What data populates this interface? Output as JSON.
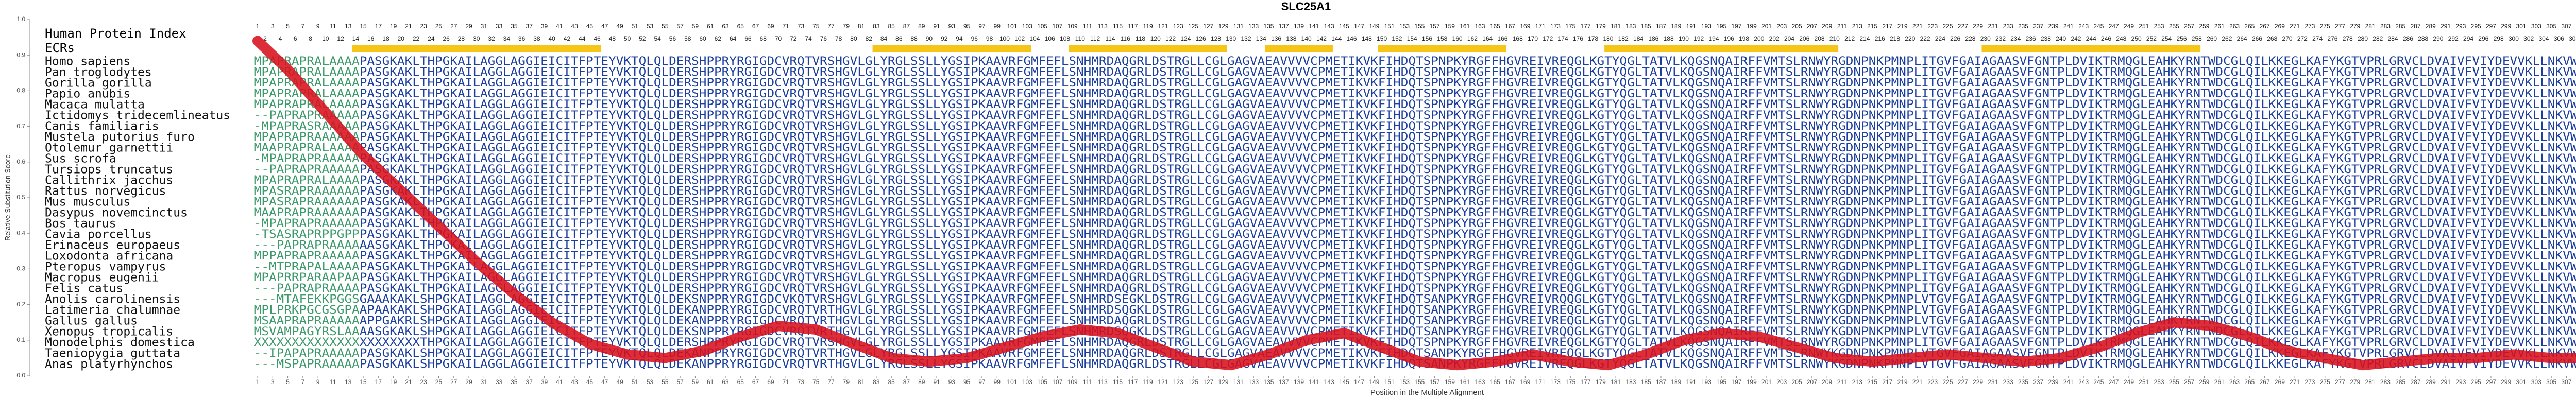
{
  "chart_data": {
    "type": "line",
    "title": "SLC25A1",
    "ylabel": "Relative Substitution Score",
    "xlabel": "Position in the Multiple Alignment",
    "index_label": "Human Protein Index",
    "ecr_label": "ECRs",
    "color": "#d8101c",
    "ecr_color": "#f5c518",
    "xlim": [
      1,
      311
    ],
    "ylim": [
      0,
      1
    ],
    "yticks": [
      {
        "value": 0,
        "label": "0.0"
      },
      {
        "value": 0.1,
        "label": "0.1"
      },
      {
        "value": 0.2,
        "label": "0.2"
      },
      {
        "value": 0.3,
        "label": "0.3"
      },
      {
        "value": 0.4,
        "label": "0.4"
      },
      {
        "value": 0.5,
        "label": "0.5"
      },
      {
        "value": 0.6,
        "label": "0.6"
      },
      {
        "value": 0.7,
        "label": "0.7"
      },
      {
        "value": 0.8,
        "label": "0.8"
      },
      {
        "value": 0.9,
        "label": "0.9"
      },
      {
        "value": 1,
        "label": "1.0"
      }
    ],
    "xticks": [
      1,
      3,
      5,
      7,
      9,
      11,
      13,
      15,
      17,
      19,
      21,
      23,
      25,
      27,
      29,
      31,
      33,
      35,
      37,
      39,
      41,
      43,
      45,
      47,
      49,
      51,
      53,
      55,
      57,
      59,
      61,
      63,
      65,
      67,
      69,
      71,
      73,
      75,
      77,
      79,
      81,
      83,
      85,
      87,
      89,
      91,
      93,
      95,
      97,
      99,
      101,
      103,
      105,
      107,
      109,
      111,
      113,
      115,
      117,
      119,
      121,
      123,
      125,
      127,
      129,
      131,
      133,
      135,
      137,
      139,
      141,
      143,
      145,
      147,
      149,
      151,
      153,
      155,
      157,
      159,
      161,
      163,
      165,
      167,
      169,
      171,
      173,
      175,
      177,
      179,
      181,
      183,
      185,
      187,
      189,
      191,
      193,
      195,
      197,
      199,
      201,
      203,
      205,
      207,
      209,
      211,
      213,
      215,
      217,
      219,
      221,
      223,
      225,
      227,
      229,
      231,
      233,
      235,
      237,
      239,
      241,
      243,
      245,
      247,
      249,
      251,
      253,
      255,
      257,
      259,
      261,
      263,
      265,
      267,
      269,
      271,
      273,
      275,
      277,
      279,
      281,
      283,
      285,
      287,
      289,
      291,
      293,
      295,
      297,
      299,
      301,
      303,
      305,
      307,
      309,
      311
    ],
    "index_labels": [
      1,
      2,
      3,
      4,
      5,
      6,
      7,
      8,
      9,
      10,
      11,
      12,
      13,
      14,
      15,
      16,
      17,
      18,
      19,
      20,
      21,
      22,
      23,
      24,
      25,
      26,
      27,
      28,
      29,
      30,
      31,
      32,
      33,
      34,
      35,
      36,
      37,
      38,
      39,
      40,
      41,
      42,
      43,
      44,
      45,
      46,
      47,
      48,
      49,
      50,
      51,
      52,
      53,
      54,
      55,
      56,
      57,
      58,
      59,
      60,
      61,
      62,
      63,
      64,
      65,
      66,
      67,
      68,
      69,
      70,
      71,
      72,
      73,
      74,
      75,
      76,
      77,
      78,
      79,
      80,
      81,
      82,
      83,
      84,
      85,
      86,
      87,
      88,
      89,
      90,
      91,
      92,
      93,
      94,
      95,
      96,
      97,
      98,
      99,
      100,
      101,
      102,
      103,
      104,
      105,
      106,
      107,
      108,
      109,
      110,
      111,
      112,
      113,
      114,
      115,
      116,
      117,
      118,
      119,
      120,
      121,
      122,
      123,
      124,
      125,
      126,
      127,
      128,
      129,
      130,
      131,
      132,
      133,
      134,
      135,
      136,
      137,
      138,
      139,
      140,
      141,
      142,
      143,
      144,
      145,
      146,
      147,
      148,
      149,
      150,
      151,
      152,
      153,
      154,
      155,
      156,
      157,
      158,
      159,
      160,
      161,
      162,
      163,
      164,
      165,
      166,
      167,
      168,
      169,
      170,
      171,
      172,
      173,
      174,
      175,
      176,
      177,
      178,
      179,
      180,
      181,
      182,
      183,
      184,
      185,
      186,
      187,
      188,
      189,
      190,
      191,
      192,
      193,
      194,
      195,
      196,
      197,
      198,
      199,
      200,
      201,
      202,
      203,
      204,
      205,
      206,
      207,
      208,
      209,
      210,
      211,
      212,
      213,
      214,
      215,
      216,
      217,
      218,
      219,
      220,
      221,
      222,
      223,
      224,
      225,
      226,
      227,
      228,
      229,
      230,
      231,
      232,
      233,
      234,
      235,
      236,
      237,
      238,
      239,
      240,
      241,
      242,
      243,
      244,
      245,
      246,
      247,
      248,
      249,
      250,
      251,
      252,
      253,
      254,
      255,
      256,
      257,
      258,
      259,
      260,
      261,
      262,
      263,
      264,
      265,
      266,
      267,
      268,
      269,
      270,
      271,
      272,
      273,
      274,
      275,
      276,
      277,
      278,
      279,
      280,
      281,
      282,
      283,
      284,
      285,
      286,
      287,
      288,
      289,
      290,
      291,
      292,
      293,
      294,
      295,
      296,
      297,
      298,
      299,
      300,
      301,
      302,
      303,
      304,
      305,
      306,
      307,
      308,
      309,
      310,
      311
    ],
    "ecrs": [
      [
        14,
        46
      ],
      [
        83,
        103
      ],
      [
        109,
        129
      ],
      [
        135,
        143
      ],
      [
        150,
        166
      ],
      [
        180,
        210
      ],
      [
        230,
        258
      ]
    ],
    "species": [
      "Homo sapiens",
      "Pan troglodytes",
      "Gorilla gorilla",
      "Papio anubis",
      "Macaca mulatta",
      "Ictidomys tridecemlineatus",
      "Canis familiaris",
      "Mustela putorius furo",
      "Otolemur garnettii",
      "Sus scrofa",
      "Tursiops truncatus",
      "Callithrix jacchus",
      "Rattus norvegicus",
      "Mus musculus",
      "Dasypus novemcinctus",
      "Bos taurus",
      "Cavia porcellus",
      "Erinaceus europaeus",
      "Loxodonta africana",
      "Pteropus vampyrus",
      "Macropus eugenii",
      "Felis catus",
      "Anolis carolinensis",
      "Latimeria chalumnae",
      "Gallus gallus",
      "Xenopus tropicalis",
      "Monodelphis domestica",
      "Taeniopygia guttata",
      "Anas platyrhynchos"
    ],
    "sequences": [
      "MPAPRAPRALAAAAPASGKAKLTHPGKAILAGGLAGGIEICITFPTEYVKTQLQLDERSHPPRYRGIGDCVRQTVRSHGVLGLYRGLSSLLYGSIPKAAVRFGMFEFLSNHMRDAQGRLDSTRGLLCGLGAGVAEAVVVVCPMETIKVKFIHDQTSPNPKYRGFFHGVREIVREQGLKGTYQGLTATVLKQGSNQAIRFFVMTSLRNWYRGDNPNKPMNPLITGVFGAIAGAASVFGNTPLDVIKTRMQGLEAHKYRNTWDCGLQILKKEGLKAFYKGTVPRLGRVCLDVAIVFVIYDEVVKLLNKVWKTD",
      "MPAPRAPRALAAAAPASGKAKLTHPGKAILAGGLAGGIEICITFPTEYVKTQLQLDERSHPPRYRGIGDCVRQTVRSHGVLGLYRGLSSLLYGSIPKAAVRFGMFEFLSNHMRDAQGRLDSTRGLLCGLGAGVAEAVVVVCPMETIKVKFIHDQTSPNPKYRGFFHGVREIVREQGLKGTYQGLTATVLKQGSNQAIRFFVMTSLRNWYRGDNPNKPMNPLITGVFGAIAGAASVFGNTPLDVIKTRMQGLEAHKYRNTWDCGLQILKKEGLKAFYKGTVPRLGRVCLDVAIVFVIYDEVVKLLNKVWKTD",
      "MPAPRAPRALAAAAPASGKAKLTHPGKAILAGGLAGGIEICITFPTEYVKTQLQLDERSHPPRYRGIGDCVRQTVRSHGVLGLYRGLSSLLYGSIPKAAVRFGMFEFLSNHMRDAQGRLDSTRGLLCGLGAGVAEAVVVVCPMETIKVKFIHDQTSPNPKYRGFFHGVREIVREQGLKGTYQGLTATVLKQGSNQAIRFFVMTSLRNWYRGDNPNKPMNPLITGVFGAIAGAASVFGNTPLDVIKTRMQGLEAHKYRNTWDCGLQILKKEGLKAFYKGTVPRLGRVCLDVAIVFVIYDEVVKLLNKVWKTD",
      "MPAPRAPRALAAAAPASGKAKLTHPGKAILAGGLAGGIEICITFPTEYVKTQLQLDERSHPPRYRGIGDCVRQTVRSHGVLGLYRGLSSLLYGSIPKAAVRFGMFEFLSNHMRDAQGRLDSTRGLLCGLGAGVAEAVVVVCPMETIKVKFIHDQTSPNPKYRGFFHGVREIVREQGLKGTYQGLTATVLKQGSNQAIRFFVMTSLRNWYRGDNPNKPMNPLITGVFGAIAGAASVFGNTPLDVIKTRMQGLEAHKYRNTWDCGLQILKKEGLKAFYKGTVPRLGRVCLDVAIVFVIYDEVVKLLNKVWKTD",
      "MPAPRAPRALAAAAPASGKAKLTHPGKAILAGGLAGGIEICITFPTEYVKTQLQLDERSHPPRYRGIGDCVRQTVRSHGVLGLYRGLSSLLYGSIPKAAVRFGMFEFLSNHMRDAQGRLDSTRGLLCGLGAGVAEAVVVVCPMETIKVKFIHDQTSPNPKYRGFFHGVREIVREQGLKGTYQGLTATVLKQGSNQAIRFFVMTSLRNWYRGDNPNKPMNPLITGVFGAIAGAASVFGNTPLDVIKTRMQGLEAHKYRNTWDCGLQILKKEGLKAFYKGTVPRLGRVCLDVAIVFVIYDEVVKLLNKVWKTD",
      "--PAPRAPRAAAAAPASGKAKLTHPGKAILAGGLAGGIEICITFPTEYVKTQLQLDERSHPPRYRGIGDCVRQTVRSHGVLGLYRGLSSLLYGSIPKAAVRFGMFEFLSNHMRDAQGRLDSTRGLLCGLGAGVAEAVVVVCPMETIKVKFIHDQTSPNPKYRGFFHGVREIVREQGLKGTYQGLTATVLKQGSNQAIRFFVMTSLRNWYRGDNPNKPMNPLITGVFGAIAGAASVFGNTPLDVIKTRMQGLEAHKYRNTWDCGLQILKKEGLKAFYKGTVPRLGRVCLDVAIVFVIYDEVVKLLNKVWKTD",
      "-MPAPRASRAAAAAPASGKAKLTHPGKAILAGGLAGGIEICITFPTEYVKTQLQLDERSHPPRYRGIGDCVRQTVRSHGVLGLYRGLSSLLYGSIPKAAVRFGMFEFLSNHMRDAQGRLDSTRGLLCGLGAGVAEAVVVVCPMETIKVKFIHDQTSPNPKYRGFFHGVREIVREQGLKGTYQGLTATVLKQGSNQAIRFFVMTSLRNWYRGDNPNKPMNPLITGVFGAIAGAASVFGNTPLDVIKTRMQGLEAHKYRNTWDCGLQILKKEGLKAFYKGTVPRLGRVCLDVAIVFVIYDEVVKLLNKVWKTD",
      "MPAPRAPRAAAAAAPASGKAKLTHPGKAILAGGLAGGIEICITFPTEYVKTQLQLDERSHPPRYRGIGDCVRQTVRSHGVLGLYRGLSSLLYGSIPKAAVRFGMFEFLSNHMRDAQGRLDSTRGLLCGLGAGVAEAVVVVCPMETIKVKFIHDQTSPNPKYRGFFHGVREIVREQGLKGTYQGLTATVLKQGSNQAIRFFVMTSLRNWYRGDNPNKPMNPLITGVFGAIAGAASVFGNTPLDVIKTRMQGLEAHKYRNTWDCGLQILKKEGLKAFYKGTVPRLGRVCLDVAIVFVIYDEVVKLLNKVWKTD",
      "MAAPRAPRALAAAAPASGKAKLTHPGKAILAGGLAGGIEICITFPTEYVKTQLQLDERSHPPRYRGIGDCVRQTVRSHGVLGLYRGLSSLLYGSIPKAAVRFGMFEFLSNHMRDAQGRLDSTRGLLCGLGAGVAEAVVVVCPMETIKVKFIHDQTSPNPKYRGFFHGVREIVREQGLKGTYQGLTATVLKQGSNQAIRFFVMTSLRNWYRGDNPNKPMNPLITGVFGAIAGAASVFGNTPLDVIKTRMQGLEAHKYRNTWDCGLQILKKEGLKAFYKGTVPRLGRVCLDVAIVFVIYDEVVKLLNKVWKTD",
      "-MPAPRAPRAAAAAPASGKAKLTHPGKAILAGGLAGGIEICITFPTEYVKTQLQLDERSHPPRYRGIGDCVRQTVRSHGVLGLYRGLSSLLYGSIPKAAVRFGMFEFLSNHMRDAQGRLDSTRGLLCGLGAGVAEAVVVVCPMETIKVKFIHDQTSPNPKYRGFFHGVREIVREQGLKGTYQGLTATVLKQGSNQAIRFFVMTSLRNWYRGDNPNKPMNPLITGVFGAIAGAASVFGNTPLDVIKTRMQGLEAHKYRNTWDCGLQILKKEGLKAFYKGTVPRLGRVCLDVAIVFVIYDEVVKLLNKVWKTD",
      "--PAPRAPRAAAAAPASGKAKLTHPGKAILAGGLAGGIEICITFPTEYVKTQLQLDERSHPPRYRGIGDCVRQTVRSHGVLGLYRGLSSLLYGSIPKAAVRFGMFEFLSNHMRDAQGRLDSTRGLLCGLGAGVAEAVVVVCPMETIKVKFIHDQTSPNPKYRGFFHGVREIVREQGLKGTYQGLTATVLKQGSNQAIRFFVMTSLRNWYRGDNPNKPMNPLITGVFGAIAGAASVFGNTPLDVIKTRMQGLEAHKYRNTWDCGLQILKKEGLKAFYKGTVPRLGRVCLDVAIVFVIYDEVVKLLNKVWKTD",
      "MPAPRAPRALAAAAPASGKAKLTHPGKAILAGGLAGGIEICITFPTEYVKTQLQLDERSHPPRYRGIGDCVRQTVRSHGVLGLYRGLSSLLYGSIPKAAVRFGMFEFLSNHMRDAQGRLDSTRGLLCGLGAGVAEAVVVVCPMETIKVKFIHDQTSPNPKYRGFFHGVREIVREQGLKGTYQGLTATVLKQGSNQAIRFFVMTSLRNWYRGDNPNKPMNPLITGVFGAIAGAASVFGNTPLDVIKTRMQGLEAHKYRNTWDCGLQILKKEGLKAFYKGTVPRLGRVCLDVAIVFVIYDEVVKLLNKVWKTD",
      "MPASRAPRAAAAAAPASGKAKLTHPGKAILAGGLAGGIEICITFPTEYVKTQLQLDERSHPPRYRGIGDCVRQTVRSHGVLGLYRGLSSLLYGSIPKAAVRFGMFEFLSNHMRDAQGRLDSTRGLLCGLGAGVAEAVVVVCPMETIKVKFIHDQTSPNPKYRGFFHGVREIVREQGLKGTYQGLTATVLKQGSNQAIRFFVMTSLRNWYRGDNPNKPMNPLITGVFGAIAGAASVFGNTPLDVIKTRMQGLEAHKYRNTWDCGLQILKKEGLKAFYKGTVPRLGRVCLDVAIVFVIYDEVVKLLNKVWKTD",
      "MPASRAPRAAAAAAPASGKAKLTHPGKAILAGGLAGGIEICITFPTEYVKTQLQLDERSHPPRYRGIGDCVRQTVRSHGVLGLYRGLSSLLYGSIPKAAVRFGMFEFLSNHMRDAQGRLDSTRGLLCGLGAGVAEAVVVVCPMETIKVKFIHDQTSPNPKYRGFFHGVREIVREQGLKGTYQGLTATVLKQGSNQAIRFFVMTSLRNWYRGDNPNKPMNPLITGVFGAIAGAASVFGNTPLDVIKTRMQGLEAHKYRNTWDCGLQILKKEGLKAFYKGTVPRLGRVCLDVAIVFVIYDEVVKLLNKVWKTD",
      "MAAPRAPRAAAAAAPASGKAKLTHPGKAILAGGLAGGIEICITFPTEYVKTQLQLDERSHPPRYRGIGDCVRQTVRSHGVLGLYRGLSSLLYGSIPKAAVRFGMFEFLSNHMRDAQGRLDSTRGLLCGLGAGVAEAVVVVCPMETIKVKFIHDQTSPNPKYRGFFHGVREIVREQGLKGTYQGLTATVLKQGSNQAIRFFVMTSLRNWYRGDNPNKPMNPLITGVFGAIAGAASVFGNTPLDVIKTRMQGLEAHKYRNTWDCGLQILKKEGLKAFYKGTVPRLGRVCLDVAIVFVIYDEVVKLLNKVWKTD",
      "-MPAPRAPRAAAAAPASGKAKLTHPGKAILAGGLAGGIEICITFPTEYVKTQLQLDERSHPPRYRGIGDCVRQTVRSHGVLGLYRGLSSLLYGSIPKAAVRFGMFEFLSNHMRDAQGRLDSTRGLLCGLGAGVAEAVVVVCPMETIKVKFIHDQTSPNPKYRGFFHGVREIVREQGLKGTYQGLTATVLKQGSNQAIRFFVMTSLRNWYRGDNPNKPMNPLITGVFGAIAGAASVFGNTPLDVIKTRMQGLEAHKYRNTWDCGLQILKKEGLKAFYKGTVPRLGRVCLDVAIVFVIYDEVVKLLNKVWKTD",
      "-TSASRAPRPPGPPPASGKAKLTHPGKAILAGGLAGGIEICITFPTEYVKTQLQLDERSHPPRYRGIGDCVRQTVRSHGVLGLYRGLSSLLYGSIPKAAVRFGMFEFLSNHMRDAQGRLDSTRGLLCGLGAGVAEAVVVVCPMETIKVKFIHDQTSPNPKYRGFFHGVREIVREQGLKGTYQGLTATVLKQGSNQAIRFFVMTSLRNWYRGDNPNKPMNPLITGVFGAIAGAASVFGNTPLDVIKTRMQGLEAHKYRNTWDCGLQILKKEGLKAFYKGTVPRLGRVCLDVAIVFVIYDEVVKLLNKVWKTD",
      "---PAPRAPRAAAAAASGKAKLTHPGKAILAGGLAGGIEICITFPTEYVKTQLQLDERSHPPRYRGIGDCVRQTVRSHGVLGLYRGLSSLLYGSIPKAAVRFGMFEFLSNHMRDAQGRLDSTRGLLCGLGAGVAEAVVVVCPMETIKVKFIHDQTSPNPKYRGFFHGVREIVREQGLKGTYQGLTATVLKQGSNQAIRFFVMTSLRNWYRGDNPNKPMNPLITGVFGAIAGAASVFGNTPLDVIKTRMQGLEAHKYRNTWDCGLQILKKEGLKAFYKGTVPRLGRVCLDVAIVFVIYDEVVKLLNKVWKTD",
      "MPPAPRAPRAAAAAPASGKAKLTHPGKAILAGGLAGGIEICITFPTEYVKTQLQLDERSHPPRYRGIGDCVRQTVRSHGVLGLYRGLSSLLYGSIPKAAVRFGMFEFLSNHMRDAQGRLDSTRGLLCGLGAGVAEAVVVVCPMETIKVKFIHDQTSPNPKYRGFFHGVREIVREQGLKGTYQGLTATVLKQGSNQAIRFFVMTSLRNWYRGDNPNKPMNPLITGVFGAIAGAASVFGNTPLDVIKTRMQGLEAHKYRNTWDCGLQILKKEGLKAFYKGTVPRLGRVCLDVAIVFVIYDEVVKLLNKVWKTD",
      "--MTPRAPALAAAAPASGKAKLTHPGKAILAGGLAGGIEICITFPTEYVKTQLQLDERSHPPRYRGIGDCVRQTVRSHGVLGLYRGLSSLLYGSIPKAAVRFGMFEFLSNHMRDAQGRLDSTRGLLCGLGAGVAEAVVVVCPMETIKVKFIHDQTSPNPKYRGFFHGVREIVREQGLKGTYQGLTATVLKQGSNQAIRFFVMTSLRNWYRGDNPNKPMNPLITGVFGAIAGAASVFGNTPLDVIKTRMQGLEAHKYRNTWDCGLQILKKEGLKAFYKGTVPRLGRVCLDVAIVFVIYDEVVKLLNKVWKTD",
      "MPAPRRPARAAPAAPASGKAKLTHPGKAILAGGLAGGIEICITFPTEYVKTQLQLDERSHPPRYRGIGDCVRQTVRSHGVLGLYRGLSSLLYGSIPKAAVRFGMFEFLSNHMRDAQGRLDSTRGLLCGLGAGVAEAVVVVCPMETIKVKFIHDQTSPNPKYRGFFHGVREIVREQGLKGTYQGLTATVLKQGSNQAIRFFVMTSLRNWYRGDNPNKPMNPLITGVFGAIAGAASVFGNTPLDVIKTRMQGLEAHKYRNTWDCGLQILKKEGLKAFYKGTVPRLGRVCLDVAIVFVIYDEVVKLLNKVWKTD",
      "---PAPRAPRAAAAPASGKAKLTHPGKAILAGGLAGGIEICITFPTEYVKTQLQLDERSHPPRYRGIGDCVRQTVRSHGVLGLYRGLSSLLYGSIPKAAVRFGMFEFLSNHMRDAQGRLDSTRGLLCGLGAGVAEAVVVVCPMETIKVKFIHDQTSPNPKYRGFFHGVREIVREQGLKGTYQGLTATVLKQGSNQAIRFFVMTSLRNWYRGDNPNKPMNPLITGVFGAIAGAASVFGNTPLDVIKTRMQGLEAHKYRNTWDCGLQILKKEGLKAFYKGTVPRLGRVCLDVAIVFVIYDEVVKLLNKVWKTD",
      "---MTAFEKKPGGSGAAAKAKLSHPGKAILAGGLAGGIEICITFPTEYVKTQLQLDEKSNPPRYRGIGDCVKQTVRSHGVLGLYRGLSSLLYGSIPKAAVRFGMFEFLSNHMRDSEGKLDSTRGLLCGLGAGVAEAVVVVCPMETIKVKFIHDQTSANPKYRGFFHGVREIVRQQGLKGTYQGLTATVLKQGSNQAIRFFVMTSLRNWYKGDNPNKPMNPLVTGVFGAIAGAASVFGNTPLDVIKTRMQGLEAHKYRNTWDCGLQILKKEGLKAFYKGTVPRLGRVCLDVAIVFVIYDEVVKLLNKVWKTD",
      "MPLPRKPGCGSGPAAPAAKAKLSHPGKAILAGGLAGGIEICITFPTEYVKTQLQLDEKANPPRYRGIGDCVRQTVRTHGVLGLYRGLSSLLYGSIPKAAVRFGMFEFLSNHMRDSQGKLDSTRGLLCGLGAGVAEAVVVVCPMETIKVKFIHDQTSANPKYRGFFHGVREIVREQGLKGTYQGLTATVLKQGSNQAIRFFVMTSLRNWYKGDNPNKPMNPLVTGVFGAIAGAASVFGNTPLDVIKTRMQGLEAHKYRNTWDCGLQILKKEGLKAFYKGTVPRLGRVCLDVAIVFVIYDEVVKLLNKVWKTD",
      "MSAAPRAPRAAAAAAPPGAKRLSHPGKAILAGGLAGGIEICITFPTEYVKTQLQLDEKANPPRYRGIGDCVRQTVRTHGVLGLYRGLSSLLYGSIPKAAVRFGMFEFLSNHMRDAQGRLDSTRGLLCGLGAGVAEAVVVVCPMETIKVKFIHDQTSANPKYRGFFHGVREIVREQGLKGTYQGLTATVLKQGSNQAIRFFVMTSLRNWYKGDNPNKPMNPLVTGVFGAIAGAASVFGNTPLDVIKTRMQGLEAHKYRNTWDCGLQILKKEGLKAFYKGTVPRLGRVCLDVAIVFVIYDEVVKLLNKVWKTD",
      "MSVAMPAGYRSLAAAASGKAKLSHPGKAILAGGLAGGIEICITFPTEYVKTQLQLDEKSNPPRYRGIGDCVRQTVRTHGVLGLYRGLSSLLYGSIPKAAVRFGMFEFLSNHMRDSQGKLDSTRGLLCGLGAGVAEAVVVVCPMETIKVKFIHDQTSANPKYRGFFHGVREIVRQQGLKGTYQGLTATVLKQGSNQAIRFFVMTSLRNWYKGDNPNKPMNPLVTGVFGAIAGAASVFGNTPLDVIKTRMQGLEAHKYRNTWDCGLQILKKEGLKAFYKGTVPRLGRVCLDVAIVFVIYDEVVKLLNKVWKTD",
      "XXXXXXXXXXXXXXXXXXXXXXTHPGKAILAGGLAGGIEICITFPTEYVKTQLQLDERSHPPRYRGIGDCVRQTVRSHGVLGLYRGLSSLLYGSIPKAAVRFGMFEFLSNHMRDAQGRLDSTRGLLCGLGAGVAEAVVVVCPMETIKVKFIHDQTSPNPKYRGFFHGVREIVREQGLKGTYQGLTATVLKQGSNQAIRFFVMTSLRNWYRGDNPNKPMNPLITGVFGAIAGAASVFGNTPLDVIKTRMQGLEAHKYRNTWDCGLQILKKEGLKAFYKGTVPRLGRVCLDVAIVFVIYDEVVKLLNKVWKTD",
      "--IPAPAPRAAAAAPASGKAKLSHPGKAILAGGLAGGIEICITFPTEYVKTQLQLDEKANPPRYRGIGDCVRQTVRTHGVLGLYRGLSSLLYGSIPKAAVRFGMFEFLSNHMRDAQGRLDSTRGLLCGLGAGVAEAVVVVCPMETIKVKFIHDQTSANPKYRGFFHGVREIVREQGLKGTYQGLTATVLKQGSNQAIRFFVMTSLRNWYKGDNPNKPMNPLVTGVFGAIAGAASVFGNTPLDVIKTRMQGLEAHKYRNTWDCGLQILKKEGLKAFYKGTVPRLGRVCLDVAIVFVIYDEVVKLLNKVWKTD",
      "---MSPAPRAAAAAPASGKAKLSHPGKAILAGGLAGGIEICITFPTEYVKTQLQLDEKANPPRYRGIGDCVRQTVRTHGVLGLYRGLSSLLYGSIPKAAVRFGMFEFLSNHMRDAQGRLDSTRGLLCGLGAGVAEAVVVVCPMETIKVKFIHDQTSANPKYRGFFHGVREIVREQGLKGTYQGLTATVLKQGSNQAIRFFVMTSLRNWYKGDNPNKPMNPLVTGVFGAIAGAASVFGNTPLDVIKTRMQGLEAHKYRNTWDCGLQILKKEGLKAFYKGTVPRLGRVCLDVAIVFVIYDEVVKLLNKVWKTD"
    ],
    "x": [
      1,
      5,
      10,
      15,
      20,
      25,
      30,
      35,
      40,
      45,
      50,
      55,
      60,
      65,
      70,
      75,
      80,
      85,
      90,
      95,
      100,
      105,
      110,
      115,
      120,
      125,
      130,
      135,
      140,
      145,
      150,
      155,
      160,
      165,
      170,
      175,
      180,
      185,
      190,
      195,
      200,
      205,
      210,
      215,
      220,
      225,
      230,
      235,
      240,
      245,
      250,
      255,
      260,
      265,
      270,
      275,
      280,
      285,
      290,
      295,
      300,
      305,
      311
    ],
    "values": [
      0.94,
      0.86,
      0.74,
      0.62,
      0.52,
      0.42,
      0.32,
      0.23,
      0.15,
      0.09,
      0.06,
      0.05,
      0.07,
      0.11,
      0.14,
      0.13,
      0.09,
      0.05,
      0.04,
      0.05,
      0.08,
      0.11,
      0.13,
      0.12,
      0.08,
      0.04,
      0.03,
      0.06,
      0.1,
      0.12,
      0.08,
      0.04,
      0.03,
      0.04,
      0.06,
      0.04,
      0.03,
      0.06,
      0.1,
      0.12,
      0.11,
      0.08,
      0.05,
      0.04,
      0.05,
      0.06,
      0.05,
      0.04,
      0.05,
      0.08,
      0.12,
      0.15,
      0.14,
      0.11,
      0.07,
      0.05,
      0.03,
      0.04,
      0.05,
      0.05,
      0.06,
      0.05,
      0.05
    ]
  }
}
